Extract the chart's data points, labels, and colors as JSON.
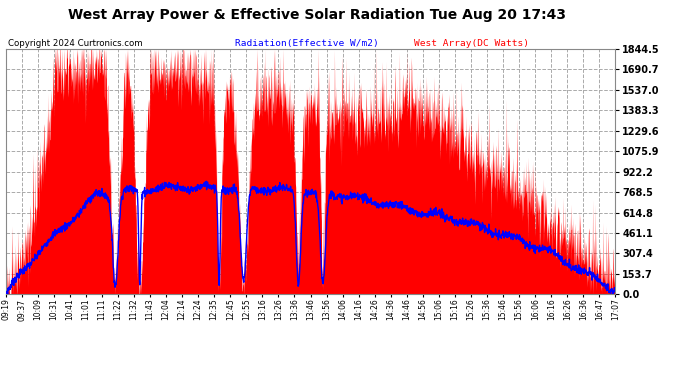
{
  "title": "West Array Power & Effective Solar Radiation Tue Aug 20 17:43",
  "copyright": "Copyright 2024 Curtronics.com",
  "legend_radiation": "Radiation(Effective W/m2)",
  "legend_west": "West Array(DC Watts)",
  "ytick_vals": [
    0.0,
    153.7,
    307.4,
    461.1,
    614.8,
    768.5,
    922.2,
    1075.9,
    1229.6,
    1383.3,
    1537.0,
    1690.7,
    1844.5
  ],
  "ymax": 1844.5,
  "ymin": 0.0,
  "bg_color": "#ffffff",
  "plot_bg_color": "#ffffff",
  "grid_color": "#aaaaaa",
  "red_color": "#ff0000",
  "blue_color": "#0000ff",
  "title_color": "#000000",
  "copyright_color": "#000000",
  "radiation_label_color": "#0000ff",
  "west_label_color": "#ff0000",
  "xtick_labels": [
    "09:19",
    "09:37",
    "10:09",
    "10:31",
    "10:41",
    "11:01",
    "11:11",
    "11:22",
    "11:32",
    "11:43",
    "12:04",
    "12:14",
    "12:24",
    "12:35",
    "12:45",
    "12:55",
    "13:16",
    "13:26",
    "13:36",
    "13:46",
    "13:56",
    "14:06",
    "14:16",
    "14:26",
    "14:36",
    "14:46",
    "14:56",
    "15:06",
    "15:16",
    "15:26",
    "15:36",
    "15:46",
    "15:56",
    "16:06",
    "16:16",
    "16:26",
    "16:36",
    "16:47",
    "17:07"
  ],
  "west_seed": 42,
  "rad_seed": 7
}
